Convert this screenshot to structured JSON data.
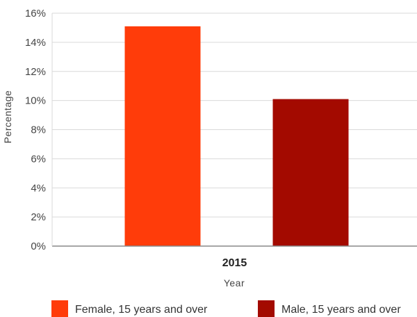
{
  "chart_data": {
    "type": "bar",
    "categories": [
      "2015"
    ],
    "series": [
      {
        "name": "Female, 15 years and over",
        "values": [
          15.1
        ],
        "color": "#ff3c0a"
      },
      {
        "name": "Male, 15 years and over",
        "values": [
          10.1
        ],
        "color": "#a30a00"
      }
    ],
    "xlabel": "Year",
    "ylabel": "Percentage",
    "ylim": [
      0,
      16
    ],
    "yticks": [
      "0%",
      "2%",
      "4%",
      "6%",
      "8%",
      "10%",
      "12%",
      "14%",
      "16%"
    ],
    "grid": true,
    "legend_position": "bottom"
  }
}
